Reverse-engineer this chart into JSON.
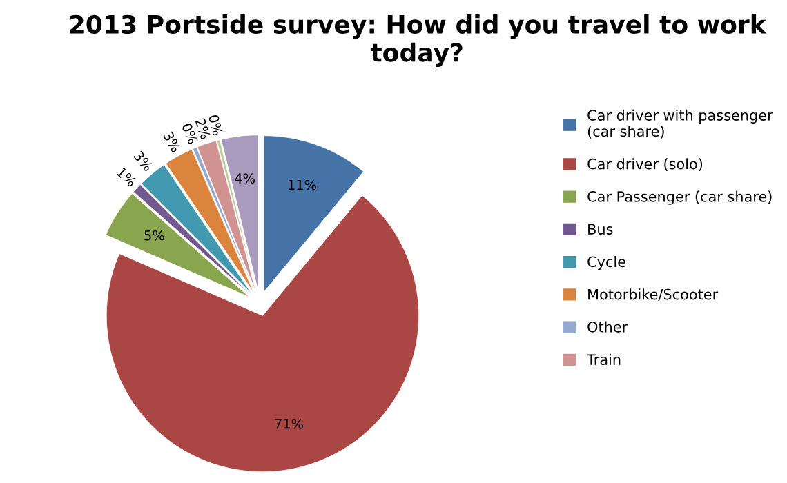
{
  "chart_data": {
    "type": "pie",
    "title": "2013 Portside survey: How did you travel to work today?",
    "categories": [
      "Car driver with passenger (car share)",
      "Car driver (solo)",
      "Car Passenger (car share)",
      "Bus",
      "Cycle",
      "Motorbike/Scooter",
      "Other",
      "Train",
      null,
      null
    ],
    "values": [
      11,
      70.5,
      5,
      1,
      3,
      3,
      0.4,
      2,
      0.3,
      3.8
    ],
    "value_labels": [
      "11%",
      "71%",
      "5%",
      "1%",
      "3%",
      "3%",
      "0%",
      "2%",
      "0%",
      "4%"
    ],
    "colors": [
      "#4572a7",
      "#aa4643",
      "#89a54e",
      "#71588f",
      "#4198af",
      "#db843d",
      "#93a9cf",
      "#d19392",
      "#b9cd96",
      "#a99bbd"
    ],
    "legend": "right"
  }
}
